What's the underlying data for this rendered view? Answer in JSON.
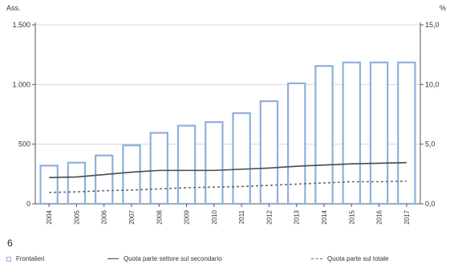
{
  "chart_data": {
    "type": "bar",
    "categories": [
      "2004",
      "2005",
      "2006",
      "2007",
      "2008",
      "2009",
      "2010",
      "2011",
      "2012",
      "2013",
      "2014",
      "2015",
      "2016",
      "2017"
    ],
    "series": [
      {
        "name": "Frontalieri",
        "type": "bar",
        "axis": "left",
        "values": [
          320,
          345,
          405,
          490,
          595,
          655,
          685,
          760,
          860,
          1010,
          1155,
          1185,
          1185,
          1185
        ]
      },
      {
        "name": "Quota parte settore sul secondario",
        "type": "line",
        "style": "solid",
        "axis": "right",
        "values": [
          2.2,
          2.25,
          2.45,
          2.65,
          2.8,
          2.8,
          2.8,
          2.9,
          3.0,
          3.15,
          3.25,
          3.35,
          3.4,
          3.45
        ]
      },
      {
        "name": "Quota parte sul totale",
        "type": "line",
        "style": "dashed",
        "axis": "right",
        "values": [
          0.95,
          1.0,
          1.1,
          1.15,
          1.25,
          1.35,
          1.4,
          1.45,
          1.55,
          1.65,
          1.75,
          1.85,
          1.85,
          1.9
        ]
      }
    ],
    "y_left": {
      "label": "Ass.",
      "ylim": [
        0,
        1500
      ],
      "ticks": [
        "0",
        "500",
        "1.000",
        "1.500"
      ],
      "tick_values": [
        0,
        500,
        1000,
        1500
      ]
    },
    "y_right": {
      "label": "%",
      "ylim": [
        0,
        15
      ],
      "ticks": [
        "0,0",
        "5,0",
        "10,0",
        "15,0"
      ],
      "tick_values": [
        0,
        5,
        10,
        15
      ]
    },
    "grid": true,
    "legend_position": "bottom",
    "colors": {
      "bar_stroke": "#8fb0dc",
      "bar_fill": "#ffffff",
      "line_solid": "#4a4a4a",
      "line_dashed": "#6a6a6a",
      "grid": "#d0d0d0"
    }
  },
  "note": "6",
  "legend": {
    "bar_label": "Frontalieri",
    "solid_label": "Quota parte settore sul secondario",
    "dashed_label": "Quota parte sul totale"
  }
}
